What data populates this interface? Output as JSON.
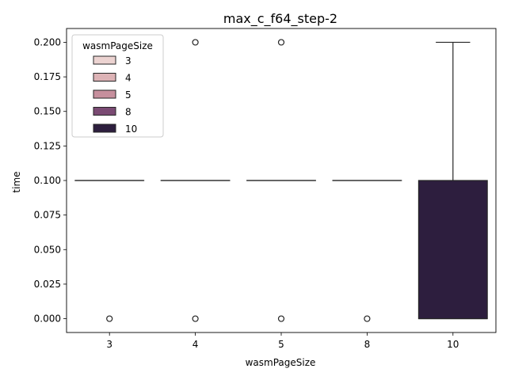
{
  "chart_data": {
    "type": "box",
    "title": "max_c_f64_step-2",
    "xlabel": "wasmPageSize",
    "ylabel": "time",
    "ylim": [
      -0.01,
      0.21
    ],
    "y_ticks": [
      0.0,
      0.025,
      0.05,
      0.075,
      0.1,
      0.125,
      0.15,
      0.175,
      0.2
    ],
    "y_tick_labels": [
      "0.000",
      "0.025",
      "0.050",
      "0.075",
      "0.100",
      "0.125",
      "0.150",
      "0.175",
      "0.200"
    ],
    "categories": [
      "3",
      "4",
      "5",
      "8",
      "10"
    ],
    "legend": {
      "title": "wasmPageSize",
      "placement": "upper-left",
      "entries": [
        {
          "label": "3",
          "color": "#ecd3d1"
        },
        {
          "label": "4",
          "color": "#ddb3b6"
        },
        {
          "label": "5",
          "color": "#c68f9d"
        },
        {
          "label": "8",
          "color": "#7a4a73"
        },
        {
          "label": "10",
          "color": "#2d1e3e"
        }
      ]
    },
    "boxes": [
      {
        "category": "3",
        "q1": 0.1,
        "median": 0.1,
        "q3": 0.1,
        "whisker_low": 0.1,
        "whisker_high": 0.1,
        "outliers": [
          0.0
        ]
      },
      {
        "category": "4",
        "q1": 0.1,
        "median": 0.1,
        "q3": 0.1,
        "whisker_low": 0.1,
        "whisker_high": 0.1,
        "outliers": [
          0.0,
          0.2
        ]
      },
      {
        "category": "5",
        "q1": 0.1,
        "median": 0.1,
        "q3": 0.1,
        "whisker_low": 0.1,
        "whisker_high": 0.1,
        "outliers": [
          0.0,
          0.2
        ]
      },
      {
        "category": "8",
        "q1": 0.1,
        "median": 0.1,
        "q3": 0.1,
        "whisker_low": 0.1,
        "whisker_high": 0.1,
        "outliers": [
          0.0
        ]
      },
      {
        "category": "10",
        "q1": 0.0,
        "median": 0.0,
        "q3": 0.1,
        "whisker_low": 0.0,
        "whisker_high": 0.2,
        "outliers": []
      }
    ]
  }
}
